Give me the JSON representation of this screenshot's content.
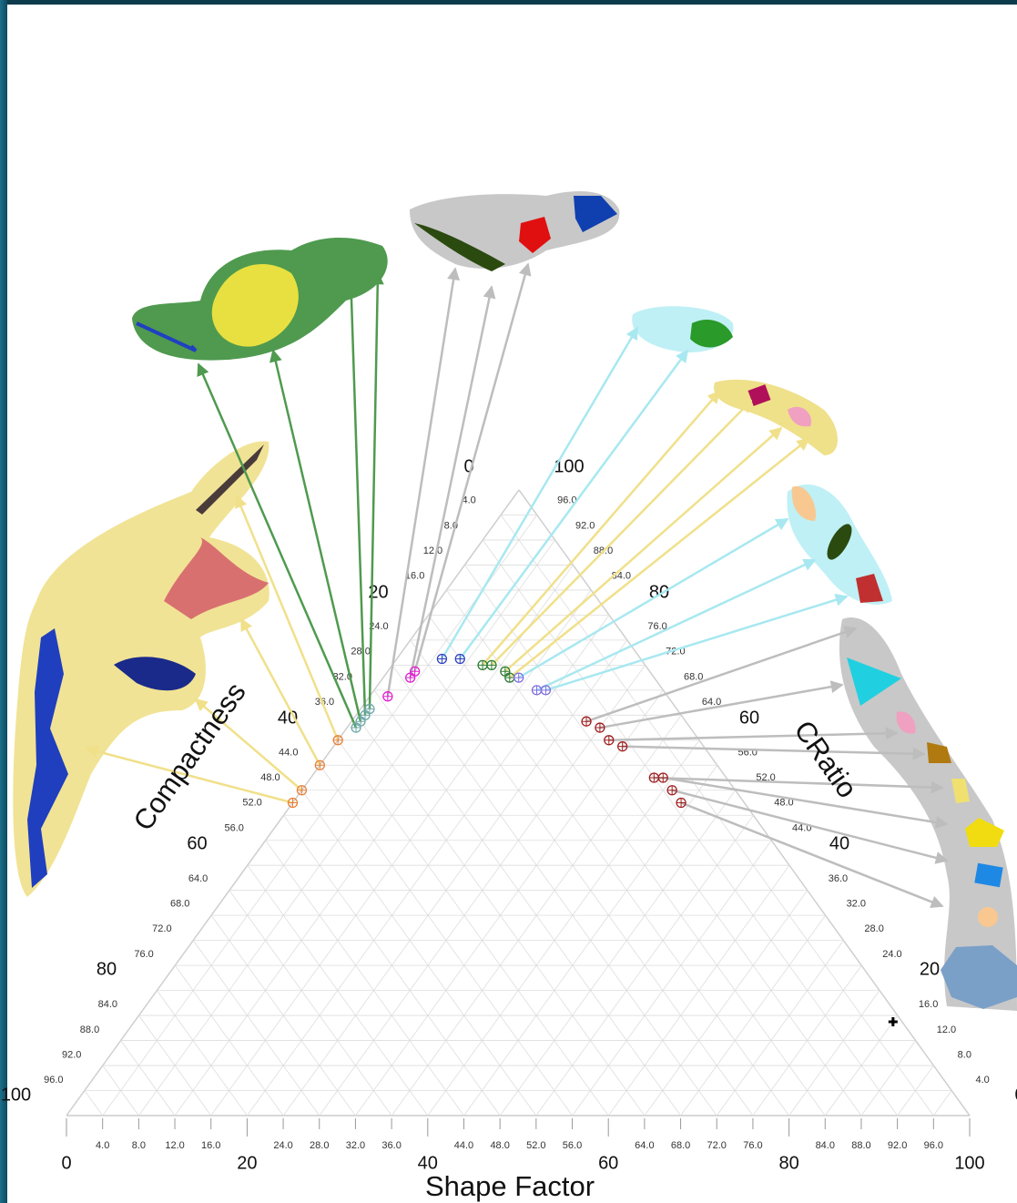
{
  "chart_data": {
    "type": "ternary",
    "axes": {
      "bottom": "Shape Factor",
      "left": "Compactness",
      "right": "CRatio"
    },
    "ticks": [
      0,
      {
        "value": 4,
        "label": "4.0"
      },
      {
        "value": 8,
        "label": "8.0"
      },
      {
        "value": 12,
        "label": "12.0"
      },
      {
        "value": 16,
        "label": "16.0"
      },
      20,
      {
        "value": 24,
        "label": "24.0"
      },
      {
        "value": 28,
        "label": "28.0"
      },
      {
        "value": 32,
        "label": "32.0"
      },
      {
        "value": 36,
        "label": "36.0"
      },
      40,
      {
        "value": 44,
        "label": "44.0"
      },
      {
        "value": 48,
        "label": "48.0"
      },
      {
        "value": 52,
        "label": "52.0"
      },
      {
        "value": 56,
        "label": "56.0"
      },
      60,
      {
        "value": 64,
        "label": "64.0"
      },
      {
        "value": 68,
        "label": "68.0"
      },
      {
        "value": 72,
        "label": "72.0"
      },
      {
        "value": 76,
        "label": "76.0"
      },
      80,
      {
        "value": 84,
        "label": "84.0"
      },
      {
        "value": 88,
        "label": "88.0"
      },
      {
        "value": 92,
        "label": "92.0"
      },
      {
        "value": 96,
        "label": "96.0"
      },
      100
    ],
    "grid": true,
    "groups": [
      {
        "color": "#e8803a",
        "marker": "circle-cross",
        "shape_factor": [
          0,
          0,
          0,
          0
        ],
        "compactness": [
          50,
          48,
          44,
          40
        ],
        "cratio": [
          50,
          52,
          56,
          60
        ]
      },
      {
        "color": "#6fa8a8",
        "marker": "circle-cross",
        "shape_factor": [
          1,
          1,
          1,
          1
        ],
        "compactness": [
          37,
          36,
          35,
          34
        ],
        "cratio": [
          62,
          63,
          64,
          65
        ]
      },
      {
        "color": "#e020d0",
        "marker": "circle-cross",
        "shape_factor": [
          2,
          3,
          3
        ],
        "compactness": [
          31,
          27,
          26
        ],
        "cratio": [
          67,
          70,
          71
        ]
      },
      {
        "color": "#3040c0",
        "marker": "circle-cross",
        "shape_factor": [
          5,
          7
        ],
        "compactness": [
          22,
          20
        ],
        "cratio": [
          73,
          73
        ]
      },
      {
        "color": "#2e7d32",
        "marker": "circle-cross",
        "shape_factor": [
          10,
          11,
          13,
          14
        ],
        "compactness": [
          18,
          17,
          16,
          16
        ],
        "cratio": [
          72,
          72,
          71,
          70
        ]
      },
      {
        "color": "#8070e0",
        "marker": "circle-cross",
        "shape_factor": [
          15,
          18,
          19
        ],
        "compactness": [
          15,
          14,
          13
        ],
        "cratio": [
          70,
          68,
          68
        ]
      },
      {
        "color": "#a02020",
        "marker": "circle-cross",
        "shape_factor": [
          26,
          28,
          30,
          32,
          38,
          39,
          41,
          43
        ],
        "compactness": [
          11,
          10,
          10,
          9,
          8,
          7,
          7,
          7
        ],
        "cratio": [
          63,
          62,
          60,
          59,
          54,
          54,
          52,
          50
        ]
      },
      {
        "color": "#000000",
        "marker": "plus",
        "shape_factor": [
          84
        ],
        "compactness": [
          1
        ],
        "cratio": [
          15
        ]
      }
    ]
  }
}
